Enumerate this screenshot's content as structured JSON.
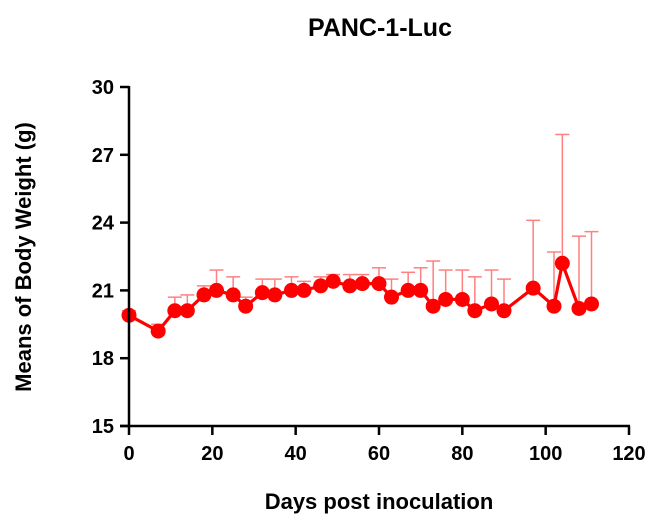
{
  "chart_data": {
    "type": "line",
    "title": "PANC-1-Luc",
    "xlabel": "Days post inoculation",
    "ylabel": "Means of Body Weight (g)",
    "xlim": [
      0,
      120
    ],
    "ylim": [
      15,
      30
    ],
    "xticks": [
      0,
      20,
      40,
      60,
      80,
      100,
      120
    ],
    "yticks": [
      15,
      18,
      21,
      24,
      27,
      30
    ],
    "grid": false,
    "color": "#ff0000",
    "error_bar_color": "#ff8080",
    "series": [
      {
        "x": [
          0,
          7,
          11,
          14,
          18,
          21,
          25,
          28,
          32,
          35,
          39,
          42,
          46,
          49,
          53,
          56,
          60,
          63,
          67,
          70,
          73,
          76,
          80,
          83,
          87,
          90,
          97,
          102,
          104,
          108,
          111
        ],
        "y": [
          19.9,
          19.2,
          20.1,
          20.1,
          20.8,
          21.0,
          20.8,
          20.3,
          20.9,
          20.8,
          21.0,
          21.0,
          21.2,
          21.4,
          21.2,
          21.3,
          21.3,
          20.7,
          21.0,
          21.0,
          20.3,
          20.6,
          20.6,
          20.1,
          20.4,
          20.1,
          21.1,
          20.3,
          22.2,
          20.2,
          20.4
        ],
        "error_upper": [
          0.2,
          0.3,
          0.6,
          0.7,
          0.4,
          0.9,
          0.8,
          0.4,
          0.6,
          0.7,
          0.6,
          0.4,
          0.4,
          0.3,
          0.5,
          0.4,
          0.7,
          0.8,
          0.8,
          1.0,
          2.0,
          1.3,
          1.3,
          1.5,
          1.5,
          1.4,
          3.0,
          2.4,
          5.7,
          3.2,
          3.2
        ]
      }
    ]
  }
}
